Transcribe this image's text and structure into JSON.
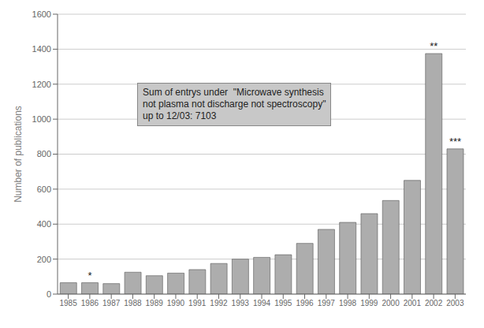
{
  "chart_data": {
    "type": "bar",
    "categories": [
      "1985",
      "1986",
      "1987",
      "1988",
      "1989",
      "1990",
      "1991",
      "1992",
      "1993",
      "1994",
      "1995",
      "1996",
      "1997",
      "1998",
      "1999",
      "2000",
      "2001",
      "2002",
      "2003"
    ],
    "values": [
      65,
      65,
      60,
      125,
      105,
      120,
      140,
      175,
      200,
      210,
      225,
      290,
      370,
      410,
      460,
      535,
      650,
      1375,
      830
    ],
    "color": "#adadad",
    "ylabel": "Number of publications",
    "ylim": [
      0,
      1600
    ],
    "yticks": [
      0,
      200,
      400,
      600,
      800,
      1000,
      1200,
      1400,
      1600
    ],
    "grid": true,
    "annotations": [
      {
        "text": "*",
        "category": "1986"
      },
      {
        "text": "**",
        "category": "2002"
      },
      {
        "text": "***",
        "category": "2003"
      },
      {
        "text": "Sum of entrys under  \"Microwave synthesis\nnot plasma not discharge not spectroscopy\"\nup to 12/03: 7103"
      }
    ]
  }
}
